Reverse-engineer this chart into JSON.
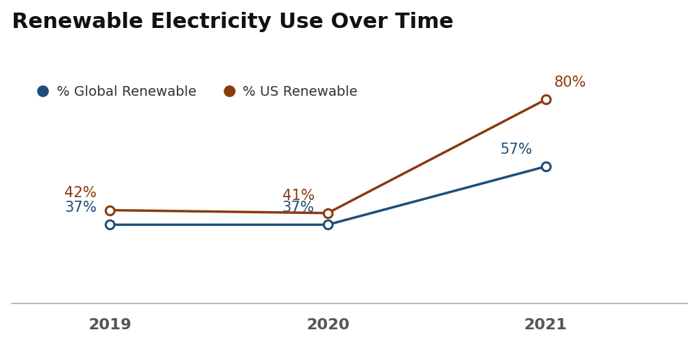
{
  "title": "Renewable Electricity Use Over Time",
  "years": [
    2019,
    2020,
    2021
  ],
  "global_values": [
    37,
    37,
    57
  ],
  "us_values": [
    42,
    41,
    80
  ],
  "global_color": "#1f4e79",
  "us_color": "#8B3A0F",
  "global_label": "% Global Renewable",
  "us_label": "% US Renewable",
  "global_annotations": [
    "37%",
    "37%",
    "57%"
  ],
  "us_annotations": [
    "42%",
    "41%",
    "80%"
  ],
  "title_fontsize": 22,
  "annotation_fontsize": 15,
  "tick_fontsize": 16,
  "legend_fontsize": 14,
  "background_color": "#ffffff",
  "marker_size": 9,
  "line_width": 2.5,
  "ylim": [
    10,
    100
  ],
  "xlim": [
    2018.55,
    2021.65
  ]
}
